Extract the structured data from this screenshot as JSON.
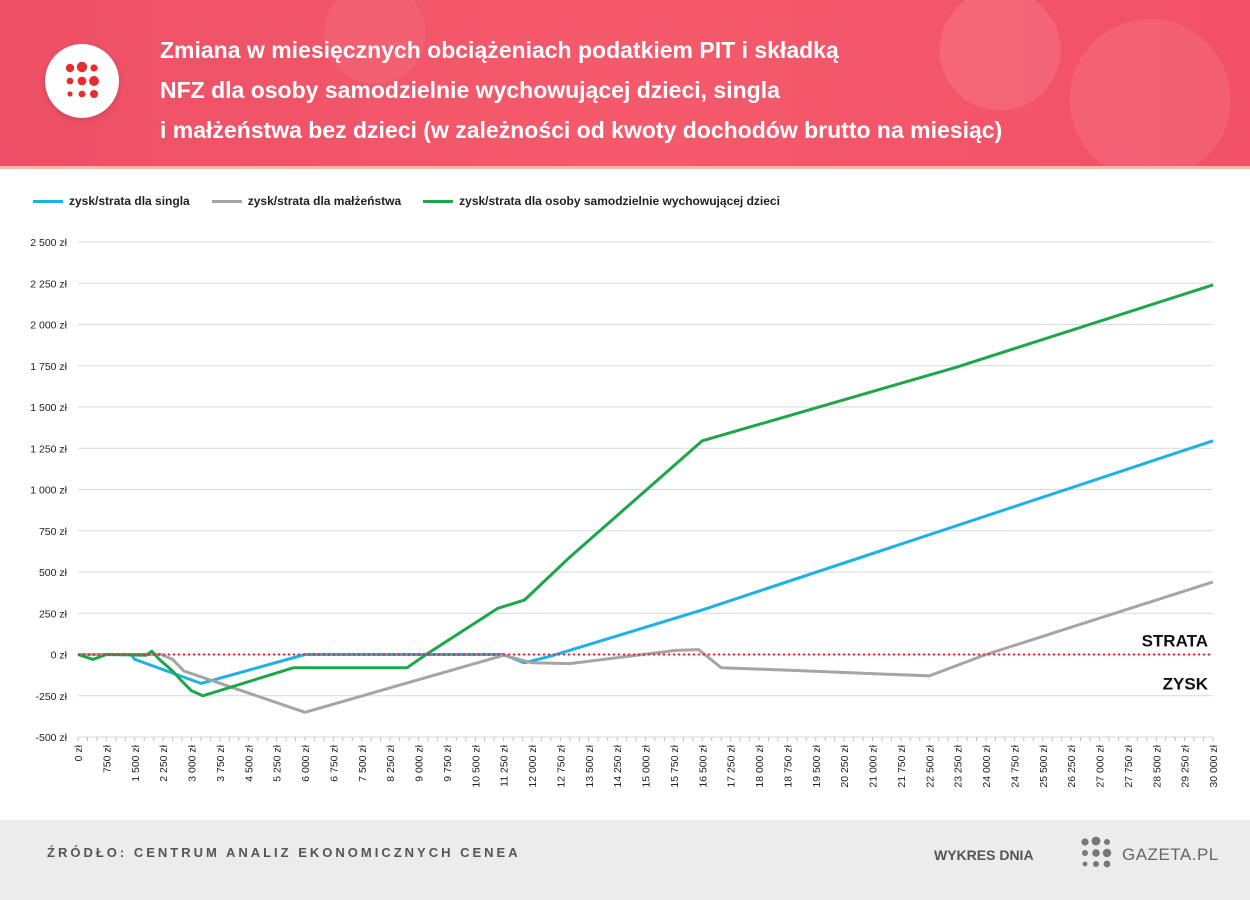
{
  "header": {
    "title_lines": [
      "Zmiana w miesięcznych obciążeniach podatkiem PIT i składką",
      "NFZ dla osoby samodzielnie wychowującej dzieci, singla",
      "i małżeństwa bez dzieci (w zależności od kwoty dochodów brutto na miesiąc)"
    ],
    "logo_icon": "red-dots-logo-icon"
  },
  "footer": {
    "source": "ŹRÓDŁO: CENTRUM ANALIZ EKONOMICZNYCH CENEA",
    "brand_label": "WYKRES DNIA",
    "brand_name": "GAZETA.PL",
    "brand_icon": "gray-dots-logo-icon"
  },
  "colors": {
    "single": "#1eb1e8",
    "married": "#a5a5a5",
    "parent": "#1ea64b",
    "zero_line": "#e5262b",
    "header": "#f0536a"
  },
  "chart_data": {
    "type": "line",
    "title": "",
    "xlabel": "",
    "ylabel": "",
    "ylim": [
      -500,
      2500
    ],
    "xlim": [
      0,
      30000
    ],
    "grid": true,
    "legend_position": "top-left",
    "y_ticks": [
      "2 500 zł",
      "2 250 zł",
      "2 000 zł",
      "1 750 zł",
      "1 500 zł",
      "1 250 zł",
      "1 000 zł",
      "750 zł",
      "500 zł",
      "250 zł",
      "0 zł",
      "-250 zł",
      "-500 zł"
    ],
    "y_tick_values": [
      2500,
      2250,
      2000,
      1750,
      1500,
      1250,
      1000,
      750,
      500,
      250,
      0,
      -250,
      -500
    ],
    "x_ticks": [
      "0 zł",
      "750 zł",
      "1 500 zł",
      "2 250 zł",
      "3 000 zł",
      "3 750 zł",
      "4 500 zł",
      "5 250 zł",
      "6 000 zł",
      "6 750 zł",
      "7 500 zł",
      "8 250 zł",
      "9 000 zł",
      "9 750 zł",
      "10 500 zł",
      "11 250 zł",
      "12 000 zł",
      "12 750 zł",
      "13 500 zł",
      "14 250 zł",
      "15 000 zł",
      "15 750 zł",
      "16 500 zł",
      "17 250 zł",
      "18 000 zł",
      "18 750 zł",
      "19 500 zł",
      "20 250 zł",
      "21 000 zł",
      "21 750 zł",
      "22 500 zł",
      "23 250 zł",
      "24 000 zł",
      "24 750 zł",
      "25 500 zł",
      "26 250 zł",
      "27 000 zł",
      "27 750 zł",
      "28 500 zł",
      "29 250 zł",
      "30 000 zł"
    ],
    "zero_line_labels": {
      "above": "STRATA",
      "below": "ZYSK"
    },
    "series": [
      {
        "name": "zysk/strata dla singla",
        "color": "#1eb1e8",
        "points": [
          [
            0,
            0
          ],
          [
            1000,
            0
          ],
          [
            1400,
            0
          ],
          [
            1500,
            -30
          ],
          [
            3250,
            -175
          ],
          [
            6000,
            0
          ],
          [
            11250,
            0
          ],
          [
            11800,
            -50
          ],
          [
            12500,
            -10
          ],
          [
            16500,
            270
          ],
          [
            30000,
            1295
          ]
        ]
      },
      {
        "name": "zysk/strata dla małżeństwa",
        "color": "#a5a5a5",
        "points": [
          [
            0,
            0
          ],
          [
            2200,
            0
          ],
          [
            2500,
            -30
          ],
          [
            2800,
            -100
          ],
          [
            6000,
            -350
          ],
          [
            11250,
            -5
          ],
          [
            12000,
            -50
          ],
          [
            13000,
            -55
          ],
          [
            15800,
            25
          ],
          [
            16400,
            30
          ],
          [
            17000,
            -80
          ],
          [
            18200,
            -90
          ],
          [
            19800,
            -105
          ],
          [
            22500,
            -130
          ],
          [
            24000,
            0
          ],
          [
            30000,
            440
          ]
        ]
      },
      {
        "name": "zysk/strata dla osoby samodzielnie wychowującej dzieci",
        "color": "#1ea64b",
        "points": [
          [
            0,
            0
          ],
          [
            400,
            -30
          ],
          [
            750,
            0
          ],
          [
            1800,
            -5
          ],
          [
            1950,
            20
          ],
          [
            2150,
            -30
          ],
          [
            2500,
            -100
          ],
          [
            2700,
            -150
          ],
          [
            3000,
            -220
          ],
          [
            3300,
            -250
          ],
          [
            5700,
            -80
          ],
          [
            8700,
            -80
          ],
          [
            9200,
            0
          ],
          [
            11100,
            280
          ],
          [
            11800,
            330
          ],
          [
            13000,
            590
          ],
          [
            16500,
            1295
          ],
          [
            23200,
            1740
          ],
          [
            30000,
            2240
          ]
        ]
      }
    ]
  }
}
